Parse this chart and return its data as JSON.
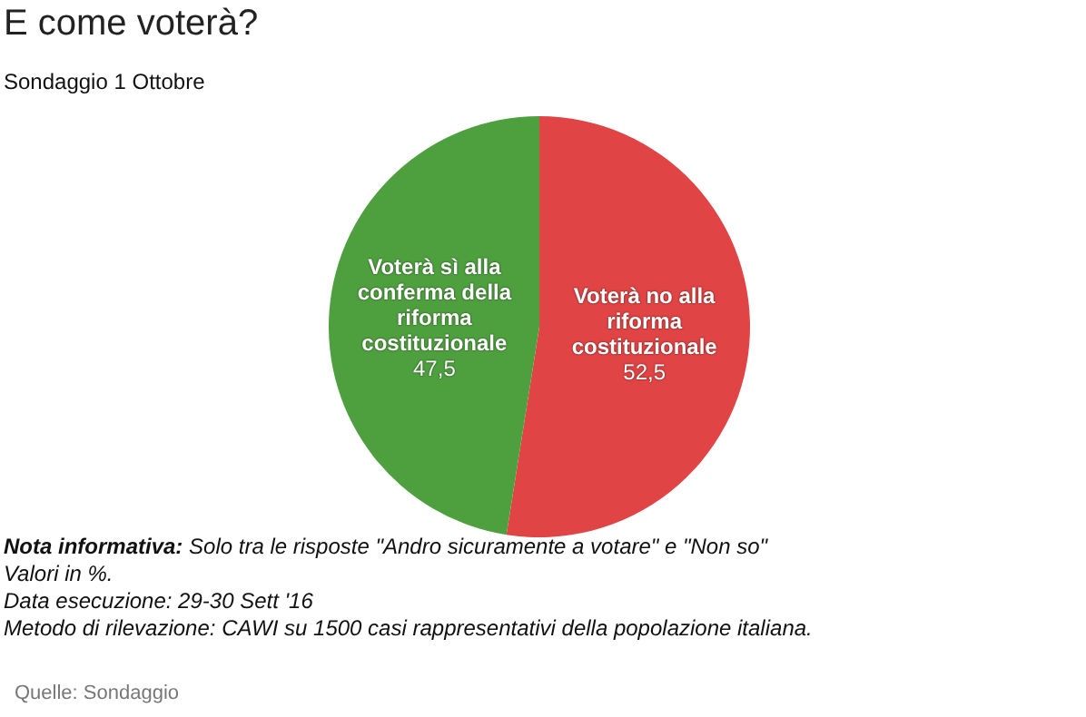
{
  "chart_data": {
    "type": "pie",
    "title": "E come voterà?",
    "subtitle": "Sondaggio 1 Ottobre",
    "categories": [
      "Voterà no alla riforma costituzionale",
      "Voterà sì alla conferma della riforma costituzionale"
    ],
    "values": [
      52.5,
      47.5
    ],
    "colors": [
      "#e04444",
      "#4ea03f"
    ],
    "value_labels": [
      "52,5",
      "47,5"
    ],
    "legend": false,
    "annotations": [
      "Nota informativa: Solo tra le risposte \"Andro sicuramente a votare\" e \"Non so\"",
      "Valori in %.",
      "Data esecuzione: 29-30 Sett '16",
      "Metodo di rilevazione: CAWI su 1500 casi rappresentativi della popolazione italiana.",
      "Quelle: Sondaggio"
    ]
  }
}
